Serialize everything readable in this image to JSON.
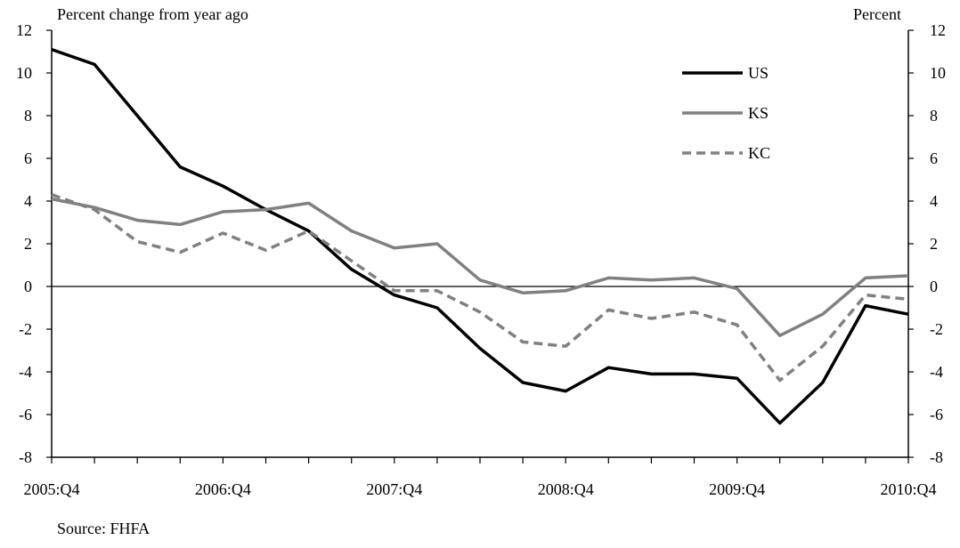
{
  "chart_data": {
    "type": "line",
    "left_axis_title": "Percent change from year ago",
    "right_axis_title": "Percent",
    "source": "Source: FHFA",
    "ylim": [
      -8,
      12
    ],
    "yticks": [
      "-8",
      "-6",
      "-4",
      "-2",
      "0",
      "2",
      "4",
      "6",
      "8",
      "10",
      "12"
    ],
    "x_tick_labels": [
      {
        "index": 0,
        "label": "2005:Q4"
      },
      {
        "index": 4,
        "label": "2006:Q4"
      },
      {
        "index": 8,
        "label": "2007:Q4"
      },
      {
        "index": 12,
        "label": "2008:Q4"
      },
      {
        "index": 16,
        "label": "2009:Q4"
      },
      {
        "index": 20,
        "label": "2010:Q4"
      }
    ],
    "num_points": 21,
    "legend_position": "top-right",
    "series": [
      {
        "name": "US",
        "color": "#000000",
        "dash": "solid",
        "values": [
          11.1,
          10.4,
          8.0,
          5.6,
          4.7,
          3.6,
          2.6,
          0.8,
          -0.4,
          -1.0,
          -2.9,
          -4.5,
          -4.9,
          -3.8,
          -4.1,
          -4.1,
          -4.3,
          -6.4,
          -4.5,
          -0.9,
          -1.3
        ]
      },
      {
        "name": "KS",
        "color": "#808080",
        "dash": "solid",
        "values": [
          4.1,
          3.7,
          3.1,
          2.9,
          3.5,
          3.6,
          3.9,
          2.6,
          1.8,
          2.0,
          0.3,
          -0.3,
          -0.2,
          0.4,
          0.3,
          0.4,
          -0.1,
          -2.3,
          -1.3,
          0.4,
          0.5
        ]
      },
      {
        "name": "KC",
        "color": "#808080",
        "dash": "dashed",
        "values": [
          4.3,
          3.6,
          2.1,
          1.6,
          2.5,
          1.7,
          2.6,
          1.2,
          -0.2,
          -0.2,
          -1.2,
          -2.6,
          -2.8,
          -1.1,
          -1.5,
          -1.2,
          -1.8,
          -4.4,
          -2.8,
          -0.4,
          -0.6
        ]
      }
    ]
  }
}
